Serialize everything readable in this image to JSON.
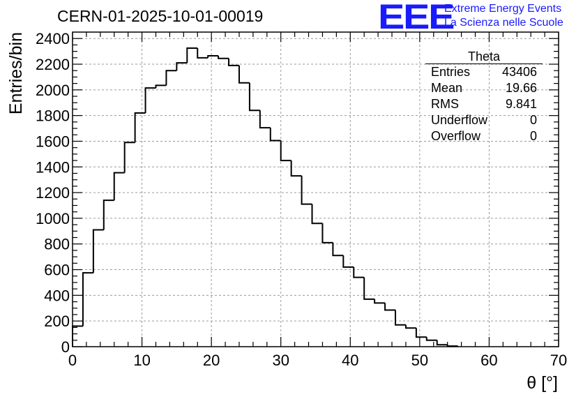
{
  "header": {
    "title": "CERN-01-2025-10-01-00019",
    "logo_text": "EEE",
    "logo_line1": "Extreme Energy Events",
    "logo_line2": "La Scienza nelle Scuole"
  },
  "stats_box": {
    "name": "Theta",
    "rows": [
      {
        "label": "Entries",
        "value": "43406"
      },
      {
        "label": "Mean",
        "value": "19.66"
      },
      {
        "label": "RMS",
        "value": "9.841"
      },
      {
        "label": "Underflow",
        "value": "0"
      },
      {
        "label": "Overflow",
        "value": "0"
      }
    ]
  },
  "colors": {
    "logo": "#1a1aff",
    "line": "#000000",
    "grid": "#9a9a9a"
  },
  "chart_data": {
    "type": "histogram",
    "xlabel": "θ [°]",
    "ylabel": "Entries/bin",
    "xlim": [
      0,
      70
    ],
    "ylim": [
      0,
      2450
    ],
    "grid": true,
    "bin_width": 1.5,
    "x_ticks": [
      0,
      10,
      20,
      30,
      40,
      50,
      60,
      70
    ],
    "y_ticks": [
      0,
      200,
      400,
      600,
      800,
      1000,
      1200,
      1400,
      1600,
      1800,
      2000,
      2200,
      2400
    ],
    "bins": [
      {
        "x0": 0.0,
        "value": 160
      },
      {
        "x0": 1.5,
        "value": 575
      },
      {
        "x0": 3.0,
        "value": 910
      },
      {
        "x0": 4.5,
        "value": 1140
      },
      {
        "x0": 6.0,
        "value": 1355
      },
      {
        "x0": 7.5,
        "value": 1590
      },
      {
        "x0": 9.0,
        "value": 1820
      },
      {
        "x0": 10.5,
        "value": 2015
      },
      {
        "x0": 12.0,
        "value": 2035
      },
      {
        "x0": 13.5,
        "value": 2150
      },
      {
        "x0": 15.0,
        "value": 2210
      },
      {
        "x0": 16.5,
        "value": 2325
      },
      {
        "x0": 18.0,
        "value": 2250
      },
      {
        "x0": 19.5,
        "value": 2265
      },
      {
        "x0": 21.0,
        "value": 2245
      },
      {
        "x0": 22.5,
        "value": 2190
      },
      {
        "x0": 24.0,
        "value": 2055
      },
      {
        "x0": 25.5,
        "value": 1840
      },
      {
        "x0": 27.0,
        "value": 1705
      },
      {
        "x0": 28.5,
        "value": 1605
      },
      {
        "x0": 30.0,
        "value": 1450
      },
      {
        "x0": 31.5,
        "value": 1330
      },
      {
        "x0": 33.0,
        "value": 1110
      },
      {
        "x0": 34.5,
        "value": 960
      },
      {
        "x0": 36.0,
        "value": 810
      },
      {
        "x0": 37.5,
        "value": 710
      },
      {
        "x0": 39.0,
        "value": 620
      },
      {
        "x0": 40.5,
        "value": 540
      },
      {
        "x0": 42.0,
        "value": 370
      },
      {
        "x0": 43.5,
        "value": 340
      },
      {
        "x0": 45.0,
        "value": 285
      },
      {
        "x0": 46.5,
        "value": 170
      },
      {
        "x0": 48.0,
        "value": 145
      },
      {
        "x0": 49.5,
        "value": 75
      },
      {
        "x0": 51.0,
        "value": 50
      },
      {
        "x0": 52.5,
        "value": 15
      },
      {
        "x0": 54.0,
        "value": 5
      }
    ]
  }
}
